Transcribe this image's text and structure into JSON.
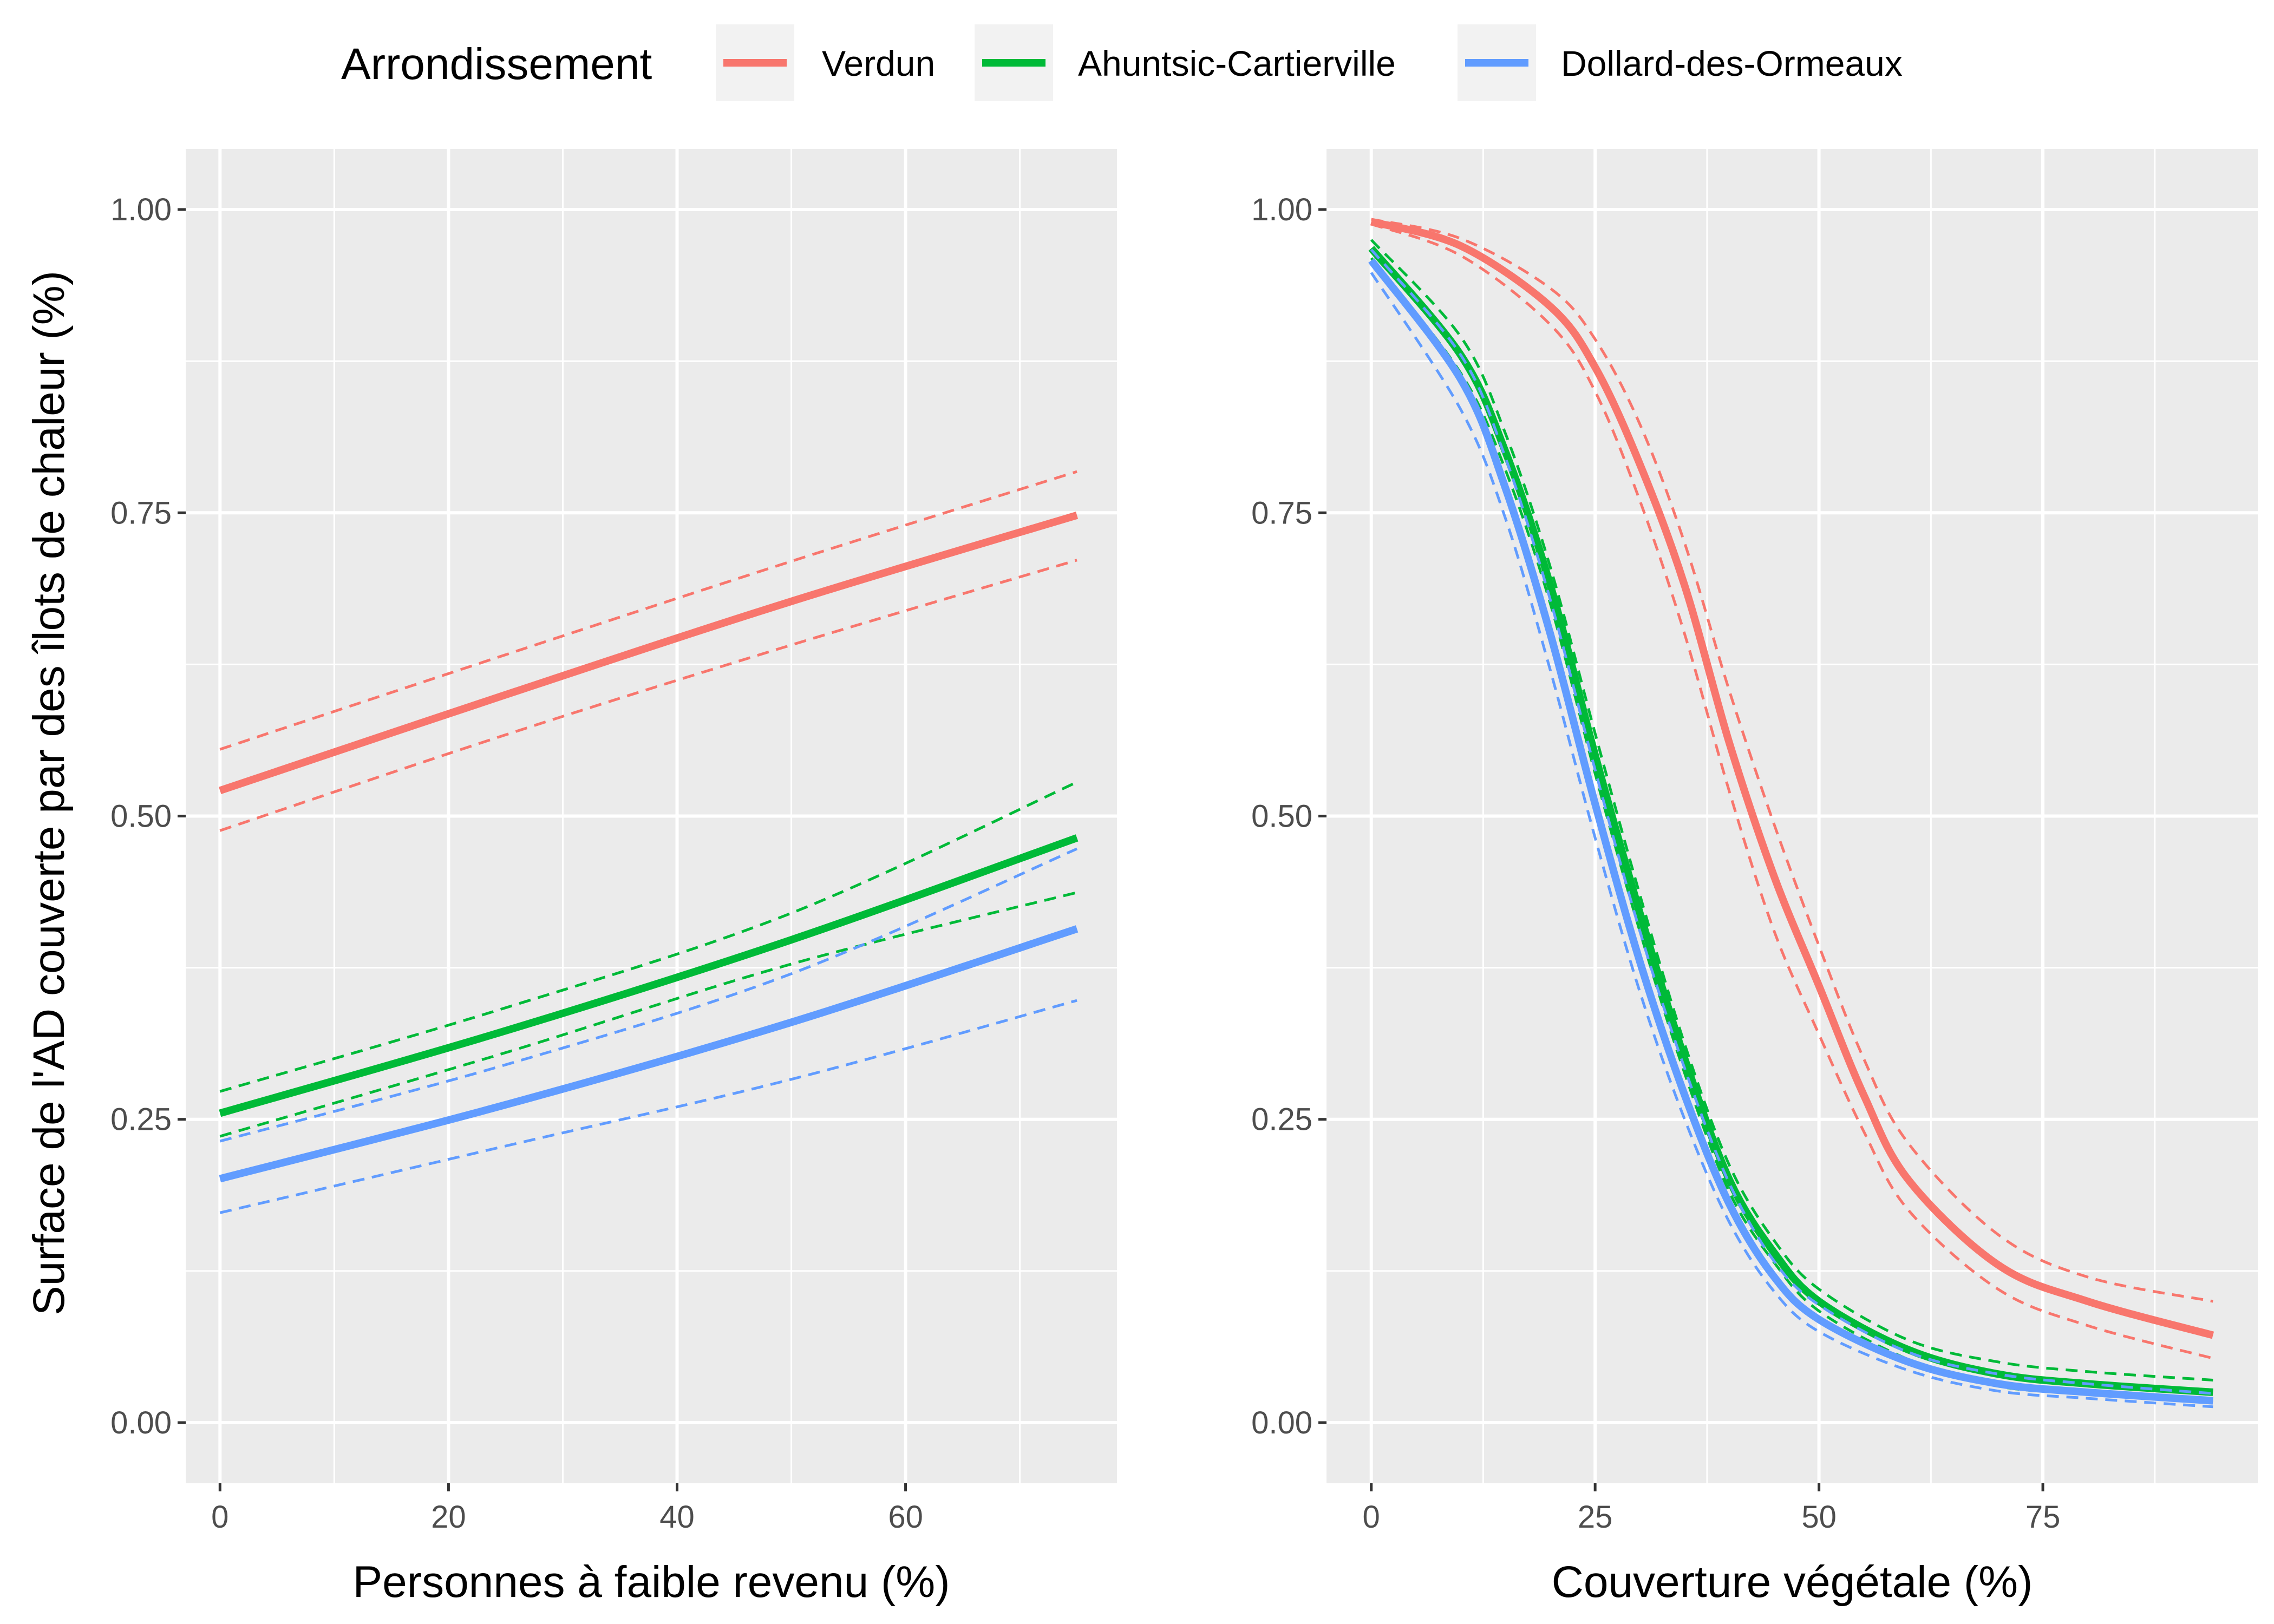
{
  "legend": {
    "title": "Arrondissement",
    "items": [
      {
        "label": "Verdun",
        "color": "#F8766D"
      },
      {
        "label": "Ahuntsic-Cartierville",
        "color": "#00BA38"
      },
      {
        "label": "Dollard-des-Ormeaux",
        "color": "#619CFF"
      }
    ]
  },
  "y_label": "Surface de l'AD couverte par des îlots de chaleur (%)",
  "chart_data": [
    {
      "type": "line",
      "xlabel": "Personnes à faible revenu (%)",
      "ylabel": "Surface de l'AD couverte par des îlots de chaleur (%)",
      "xlim": [
        -3,
        78.5
      ],
      "ylim": [
        -0.05,
        1.05
      ],
      "xticks": [
        0,
        20,
        40,
        60
      ],
      "yticks": [
        0.0,
        0.25,
        0.5,
        0.75,
        1.0
      ],
      "ytick_labels": [
        "0.00",
        "0.25",
        "0.50",
        "0.75",
        "1.00"
      ],
      "grid": true,
      "series": [
        {
          "name": "Verdun",
          "color": "#F8766D",
          "x": [
            0,
            25,
            50,
            75
          ],
          "fit": [
            0.521,
            0.6,
            0.677,
            0.748
          ],
          "upper": [
            0.555,
            0.633,
            0.71,
            0.784
          ],
          "lower": [
            0.488,
            0.567,
            0.641,
            0.711
          ]
        },
        {
          "name": "Ahuntsic-Cartierville",
          "color": "#00BA38",
          "x": [
            0,
            25,
            50,
            75
          ],
          "fit": [
            0.255,
            0.323,
            0.398,
            0.482
          ],
          "upper": [
            0.273,
            0.342,
            0.42,
            0.528
          ],
          "lower": [
            0.236,
            0.305,
            0.378,
            0.437
          ]
        },
        {
          "name": "Dollard-des-Ormeaux",
          "color": "#619CFF",
          "x": [
            0,
            25,
            50,
            75
          ],
          "fit": [
            0.201,
            0.262,
            0.33,
            0.407
          ],
          "upper": [
            0.232,
            0.295,
            0.37,
            0.473
          ],
          "lower": [
            0.173,
            0.228,
            0.283,
            0.348
          ]
        }
      ]
    },
    {
      "type": "line",
      "xlabel": "Couverture végétale (%)",
      "ylabel": "Surface de l'AD couverte par des îlots de chaleur (%)",
      "xlim": [
        -5,
        99
      ],
      "ylim": [
        -0.05,
        1.05
      ],
      "xticks": [
        0,
        25,
        50,
        75
      ],
      "yticks": [
        0.0,
        0.25,
        0.5,
        0.75,
        1.0
      ],
      "ytick_labels": [
        "0.00",
        "0.25",
        "0.50",
        "0.75",
        "1.00"
      ],
      "grid": true,
      "series": [
        {
          "name": "Verdun",
          "color": "#F8766D",
          "x": [
            0,
            10,
            20,
            25,
            30,
            35,
            40,
            45,
            50,
            55,
            60,
            70,
            80,
            94
          ],
          "fit": [
            0.99,
            0.97,
            0.92,
            0.87,
            0.79,
            0.69,
            0.56,
            0.45,
            0.36,
            0.27,
            0.2,
            0.13,
            0.1,
            0.072
          ],
          "upper": [
            0.992,
            0.976,
            0.935,
            0.893,
            0.823,
            0.725,
            0.603,
            0.493,
            0.393,
            0.3,
            0.23,
            0.155,
            0.12,
            0.1
          ],
          "lower": [
            0.988,
            0.962,
            0.905,
            0.85,
            0.76,
            0.65,
            0.52,
            0.405,
            0.32,
            0.24,
            0.175,
            0.11,
            0.08,
            0.053
          ]
        },
        {
          "name": "Ahuntsic-Cartierville",
          "color": "#00BA38",
          "x": [
            0,
            10,
            15,
            20,
            25,
            30,
            35,
            40,
            45,
            50,
            60,
            70,
            80,
            94
          ],
          "fit": [
            0.968,
            0.88,
            0.8,
            0.69,
            0.55,
            0.42,
            0.3,
            0.2,
            0.14,
            0.1,
            0.06,
            0.04,
            0.032,
            0.025
          ],
          "upper": [
            0.975,
            0.895,
            0.815,
            0.705,
            0.568,
            0.435,
            0.312,
            0.212,
            0.15,
            0.11,
            0.068,
            0.05,
            0.042,
            0.035
          ],
          "lower": [
            0.96,
            0.865,
            0.785,
            0.675,
            0.535,
            0.405,
            0.288,
            0.19,
            0.132,
            0.092,
            0.052,
            0.03,
            0.024,
            0.018
          ]
        },
        {
          "name": "Dollard-des-Ormeaux",
          "color": "#619CFF",
          "x": [
            0,
            10,
            15,
            20,
            25,
            30,
            35,
            40,
            45,
            50,
            60,
            70,
            80,
            94
          ],
          "fit": [
            0.958,
            0.86,
            0.77,
            0.65,
            0.51,
            0.38,
            0.27,
            0.18,
            0.12,
            0.085,
            0.05,
            0.032,
            0.025,
            0.018
          ],
          "upper": [
            0.967,
            0.88,
            0.795,
            0.678,
            0.538,
            0.405,
            0.292,
            0.197,
            0.133,
            0.097,
            0.058,
            0.04,
            0.032,
            0.024
          ],
          "lower": [
            0.948,
            0.835,
            0.745,
            0.62,
            0.482,
            0.355,
            0.25,
            0.165,
            0.108,
            0.075,
            0.043,
            0.026,
            0.02,
            0.013
          ]
        }
      ]
    }
  ]
}
